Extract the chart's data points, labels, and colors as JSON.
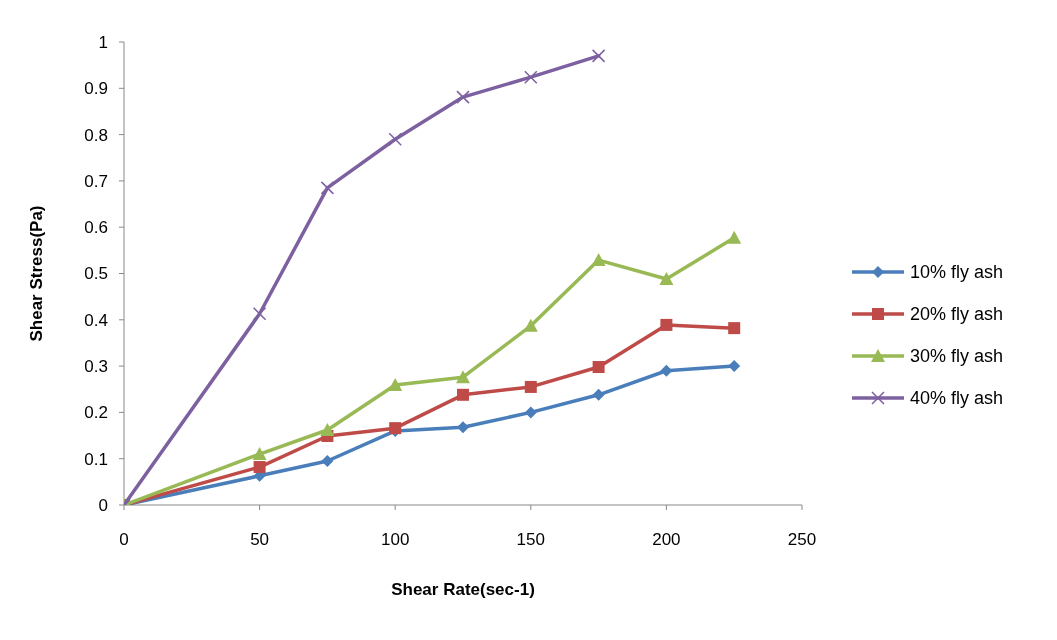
{
  "chart_data": {
    "type": "line",
    "xlabel": "Shear Rate(sec-1)",
    "ylabel": "Shear Stress(Pa)",
    "x": [
      0,
      50,
      75,
      100,
      125,
      150,
      175,
      200,
      225
    ],
    "xlim": [
      0,
      250
    ],
    "xticks": [
      0,
      50,
      100,
      150,
      200,
      250
    ],
    "ylim": [
      0,
      1
    ],
    "yticks": [
      0,
      0.1,
      0.2,
      0.3,
      0.4,
      0.5,
      0.6,
      0.7,
      0.8,
      0.9,
      1
    ],
    "grid": false,
    "legend": "right",
    "series": [
      {
        "name": "10% fly ash",
        "color": "#4a7ebb",
        "marker": "diamond",
        "values": [
          0,
          0.063,
          0.095,
          0.16,
          0.168,
          0.2,
          0.238,
          0.29,
          0.3
        ]
      },
      {
        "name": "20% fly ash",
        "color": "#be4b48",
        "marker": "square",
        "values": [
          0,
          0.082,
          0.149,
          0.166,
          0.238,
          0.255,
          0.298,
          0.389,
          0.382
        ]
      },
      {
        "name": "30% fly ash",
        "color": "#98b954",
        "marker": "triangle",
        "values": [
          0,
          0.11,
          0.162,
          0.259,
          0.276,
          0.387,
          0.529,
          0.488,
          0.577
        ]
      },
      {
        "name": "40% fly ash",
        "color": "#7d60a0",
        "marker": "cross",
        "values": [
          0,
          0.413,
          0.685,
          0.79,
          0.881,
          0.924,
          0.97,
          null,
          null
        ]
      }
    ]
  }
}
